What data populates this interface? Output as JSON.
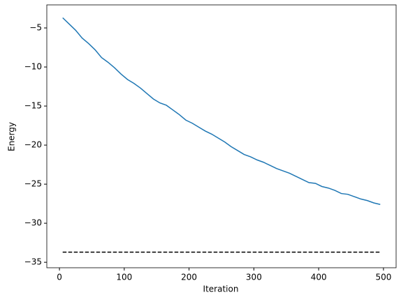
{
  "chart_data": {
    "type": "line",
    "xlabel": "Iteration",
    "ylabel": "Energy",
    "xlim": [
      -19.5,
      519.5
    ],
    "ylim": [
      -35.7,
      -2.05
    ],
    "xticks": [
      0,
      100,
      200,
      300,
      400,
      500
    ],
    "yticks": [
      {
        "value": -35,
        "label": "−35"
      },
      {
        "value": -30,
        "label": "−30"
      },
      {
        "value": -25,
        "label": "−25"
      },
      {
        "value": -20,
        "label": "−20"
      },
      {
        "value": -15,
        "label": "−15"
      },
      {
        "value": -10,
        "label": "−10"
      },
      {
        "value": -5,
        "label": "−5"
      }
    ],
    "grid": false,
    "series": [
      {
        "color": "#1f77b4",
        "dashed": false,
        "x": [
          5,
          15,
          25,
          35,
          45,
          55,
          65,
          75,
          85,
          95,
          105,
          115,
          125,
          135,
          145,
          155,
          165,
          175,
          185,
          195,
          205,
          215,
          225,
          235,
          245,
          255,
          265,
          275,
          285,
          295,
          305,
          315,
          325,
          335,
          345,
          355,
          365,
          375,
          385,
          395,
          405,
          415,
          425,
          435,
          445,
          455,
          465,
          475,
          485,
          495
        ],
        "values": [
          -3.7,
          -4.5,
          -5.3,
          -6.3,
          -7.0,
          -7.8,
          -8.8,
          -9.4,
          -10.1,
          -10.9,
          -11.6,
          -12.1,
          -12.7,
          -13.4,
          -14.1,
          -14.6,
          -14.9,
          -15.5,
          -16.1,
          -16.8,
          -17.2,
          -17.7,
          -18.2,
          -18.6,
          -19.1,
          -19.6,
          -20.2,
          -20.7,
          -21.2,
          -21.5,
          -21.9,
          -22.2,
          -22.6,
          -23.0,
          -23.3,
          -23.6,
          -24.0,
          -24.4,
          -24.8,
          -24.9,
          -25.3,
          -25.5,
          -25.8,
          -26.2,
          -26.3,
          -26.6,
          -26.9,
          -27.1,
          -27.4,
          -27.6
        ]
      },
      {
        "color": "#000000",
        "dashed": true,
        "x": [
          5,
          495
        ],
        "values": [
          -33.7,
          -33.7
        ]
      }
    ]
  }
}
